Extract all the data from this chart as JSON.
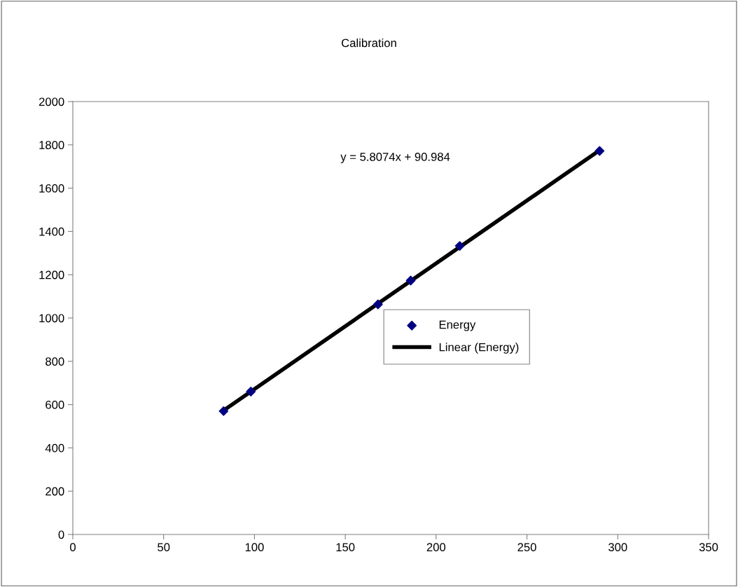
{
  "chart_data": {
    "type": "scatter",
    "title": "Calibration",
    "xlim": [
      0,
      350
    ],
    "xticks": [
      0,
      50,
      100,
      150,
      200,
      250,
      300,
      350
    ],
    "ylim": [
      0,
      2000
    ],
    "yticks": [
      0,
      200,
      400,
      600,
      800,
      1000,
      1200,
      1400,
      1600,
      1800,
      2000
    ],
    "grid": false,
    "legend": "right",
    "annotations": [
      "y = 5.8074x + 90.984"
    ],
    "series": [
      {
        "name": "Energy",
        "marker": "diamond",
        "color": "#000080",
        "x": [
          83,
          98,
          168,
          186,
          213,
          290
        ],
        "values": [
          570,
          660,
          1063,
          1173,
          1333,
          1772
        ]
      },
      {
        "name": "Linear (Energy)",
        "type": "line",
        "color": "#000000",
        "x": [
          83,
          290
        ],
        "values": [
          573,
          1775
        ],
        "line_style": "solid"
      }
    ]
  }
}
